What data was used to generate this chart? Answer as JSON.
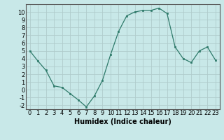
{
  "x": [
    0,
    1,
    2,
    3,
    4,
    5,
    6,
    7,
    8,
    9,
    10,
    11,
    12,
    13,
    14,
    15,
    16,
    17,
    18,
    19,
    20,
    21,
    22,
    23
  ],
  "y": [
    5,
    3.7,
    2.5,
    0.5,
    0.3,
    -0.5,
    -1.3,
    -2.2,
    -0.8,
    1.2,
    4.5,
    7.5,
    9.5,
    10.0,
    10.2,
    10.2,
    10.5,
    9.8,
    5.5,
    4.0,
    3.5,
    5.0,
    5.5,
    3.8
  ],
  "xlabel": "Humidex (Indice chaleur)",
  "xlim": [
    -0.5,
    23.5
  ],
  "ylim": [
    -2.5,
    11
  ],
  "yticks": [
    -2,
    -1,
    0,
    1,
    2,
    3,
    4,
    5,
    6,
    7,
    8,
    9,
    10
  ],
  "xticks": [
    0,
    1,
    2,
    3,
    4,
    5,
    6,
    7,
    8,
    9,
    10,
    11,
    12,
    13,
    14,
    15,
    16,
    17,
    18,
    19,
    20,
    21,
    22,
    23
  ],
  "line_color": "#2e7a6a",
  "marker_color": "#2e7a6a",
  "bg_color": "#c8e8e8",
  "grid_color": "#b0cccc",
  "label_fontsize": 7,
  "tick_fontsize": 6
}
